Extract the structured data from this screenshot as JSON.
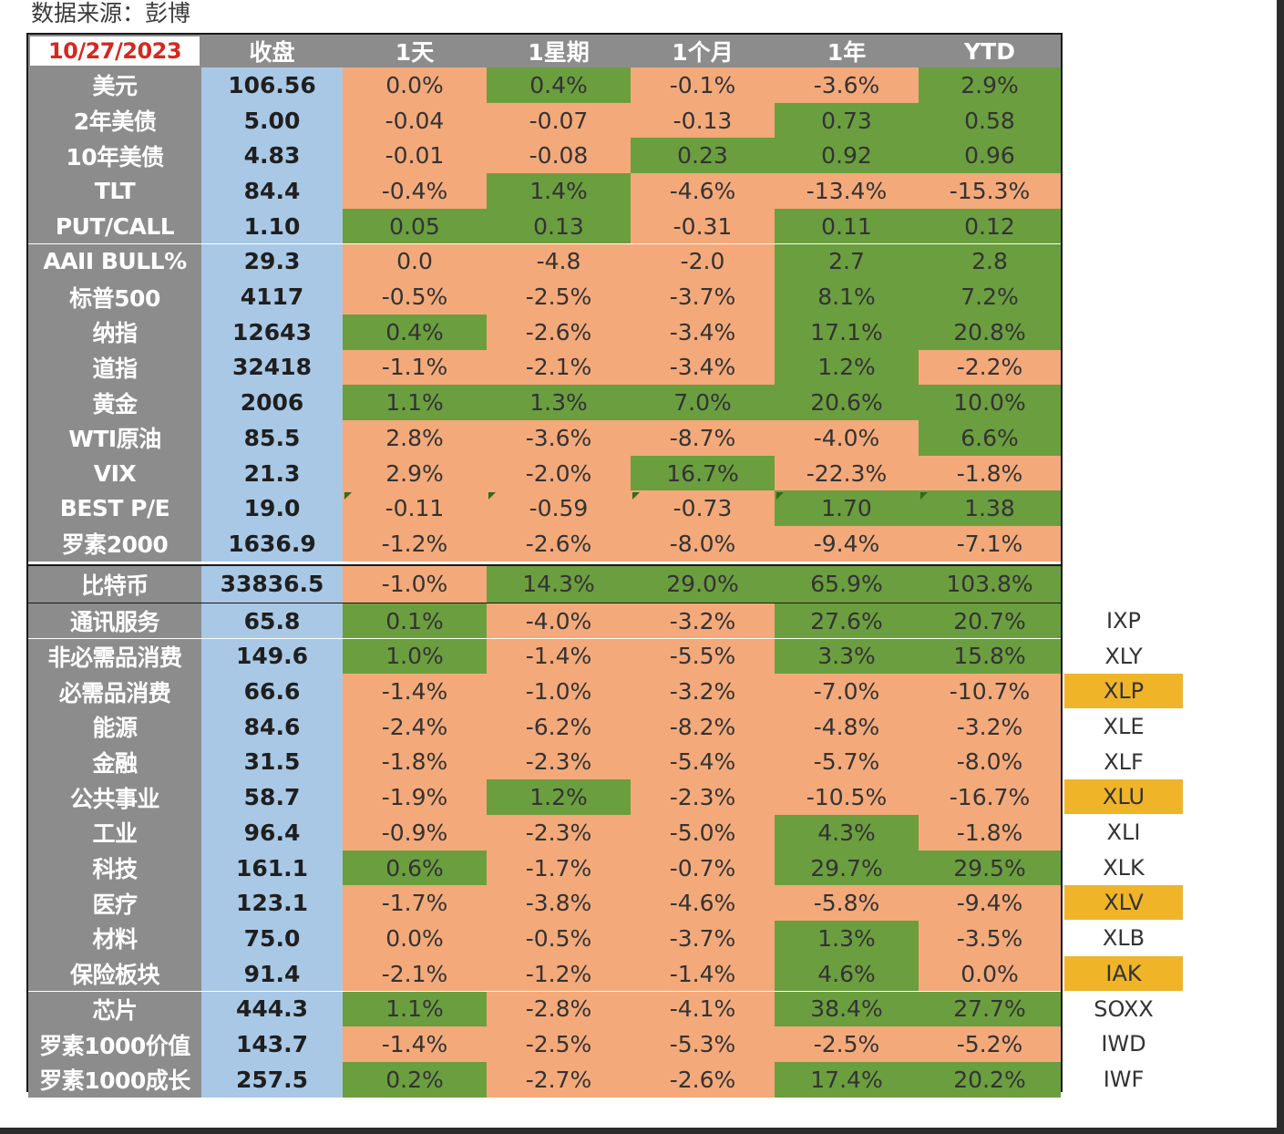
{
  "source": "数据来源：彭博",
  "header": {
    "date": "10/27/2023",
    "columns": [
      "收盘",
      "1天",
      "1星期",
      "1个月",
      "1年",
      "YTD"
    ]
  },
  "colors": {
    "positive": "#6b9e3f",
    "negative": "#f4a97a",
    "label_bg": "#8c8c8c",
    "close_bg": "#a9c8e6",
    "etf_highlight": "#f0b429"
  },
  "rows": [
    {
      "name": "美元",
      "close": "106.56",
      "d1": "0.0%",
      "w1": "0.4%",
      "m1": "-0.1%",
      "y1": "-3.6%",
      "ytd": "2.9%",
      "colors": [
        "neg",
        "pos",
        "neg",
        "neg",
        "pos"
      ]
    },
    {
      "name": "2年美债",
      "close": "5.00",
      "d1": "-0.04",
      "w1": "-0.07",
      "m1": "-0.13",
      "y1": "0.73",
      "ytd": "0.58",
      "colors": [
        "neg",
        "neg",
        "neg",
        "pos",
        "pos"
      ]
    },
    {
      "name": "10年美债",
      "close": "4.83",
      "d1": "-0.01",
      "w1": "-0.08",
      "m1": "0.23",
      "y1": "0.92",
      "ytd": "0.96",
      "colors": [
        "neg",
        "neg",
        "pos",
        "pos",
        "pos"
      ]
    },
    {
      "name": "TLT",
      "close": "84.4",
      "d1": "-0.4%",
      "w1": "1.4%",
      "m1": "-4.6%",
      "y1": "-13.4%",
      "ytd": "-15.3%",
      "colors": [
        "neg",
        "pos",
        "neg",
        "neg",
        "neg"
      ]
    },
    {
      "name": "PUT/CALL",
      "close": "1.10",
      "d1": "0.05",
      "w1": "0.13",
      "m1": "-0.31",
      "y1": "0.11",
      "ytd": "0.12",
      "colors": [
        "pos",
        "pos",
        "neg",
        "pos",
        "pos"
      ]
    },
    {
      "name": "AAII BULL%",
      "close": "29.3",
      "d1": "0.0",
      "w1": "-4.8",
      "m1": "-2.0",
      "y1": "2.7",
      "ytd": "2.8",
      "colors": [
        "neg",
        "neg",
        "neg",
        "pos",
        "pos"
      ]
    },
    {
      "name": "标普500",
      "close": "4117",
      "d1": "-0.5%",
      "w1": "-2.5%",
      "m1": "-3.7%",
      "y1": "8.1%",
      "ytd": "7.2%",
      "colors": [
        "neg",
        "neg",
        "neg",
        "pos",
        "pos"
      ]
    },
    {
      "name": "纳指",
      "close": "12643",
      "d1": "0.4%",
      "w1": "-2.6%",
      "m1": "-3.4%",
      "y1": "17.1%",
      "ytd": "20.8%",
      "colors": [
        "pos",
        "neg",
        "neg",
        "pos",
        "pos"
      ]
    },
    {
      "name": "道指",
      "close": "32418",
      "d1": "-1.1%",
      "w1": "-2.1%",
      "m1": "-3.4%",
      "y1": "1.2%",
      "ytd": "-2.2%",
      "colors": [
        "neg",
        "neg",
        "neg",
        "pos",
        "neg"
      ]
    },
    {
      "name": "黄金",
      "close": "2006",
      "d1": "1.1%",
      "w1": "1.3%",
      "m1": "7.0%",
      "y1": "20.6%",
      "ytd": "10.0%",
      "colors": [
        "pos",
        "pos",
        "pos",
        "pos",
        "pos"
      ]
    },
    {
      "name": "WTI原油",
      "close": "85.5",
      "d1": "2.8%",
      "w1": "-3.6%",
      "m1": "-8.7%",
      "y1": "-4.0%",
      "ytd": "6.6%",
      "colors": [
        "neg",
        "neg",
        "neg",
        "neg",
        "pos"
      ]
    },
    {
      "name": "VIX",
      "close": "21.3",
      "d1": "2.9%",
      "w1": "-2.0%",
      "m1": "16.7%",
      "y1": "-22.3%",
      "ytd": "-1.8%",
      "colors": [
        "neg",
        "neg",
        "pos",
        "neg",
        "neg"
      ]
    },
    {
      "name": "BEST P/E",
      "close": "19.0",
      "d1": "-0.11",
      "w1": "-0.59",
      "m1": "-0.73",
      "y1": "1.70",
      "ytd": "1.38",
      "colors": [
        "neg",
        "neg",
        "neg",
        "pos",
        "pos"
      ],
      "markers": true
    },
    {
      "name": "罗素2000",
      "close": "1636.9",
      "d1": "-1.2%",
      "w1": "-2.6%",
      "m1": "-8.0%",
      "y1": "-9.4%",
      "ytd": "-7.1%",
      "colors": [
        "neg",
        "neg",
        "neg",
        "neg",
        "neg"
      ]
    }
  ],
  "btc": {
    "name": "比特币",
    "close": "33836.5",
    "d1": "-1.0%",
    "w1": "14.3%",
    "m1": "29.0%",
    "y1": "65.9%",
    "ytd": "103.8%",
    "colors": [
      "neg",
      "pos",
      "pos",
      "pos",
      "pos"
    ]
  },
  "sectors": [
    {
      "name": "通讯服务",
      "close": "65.8",
      "d1": "0.1%",
      "w1": "-4.0%",
      "m1": "-3.2%",
      "y1": "27.6%",
      "ytd": "20.7%",
      "colors": [
        "pos",
        "neg",
        "neg",
        "pos",
        "pos"
      ],
      "etf": "IXP",
      "hl": false
    },
    {
      "name": "非必需品消费",
      "close": "149.6",
      "d1": "1.0%",
      "w1": "-1.4%",
      "m1": "-5.5%",
      "y1": "3.3%",
      "ytd": "15.8%",
      "colors": [
        "pos",
        "neg",
        "neg",
        "pos",
        "pos"
      ],
      "etf": "XLY",
      "hl": false
    },
    {
      "name": "必需品消费",
      "close": "66.6",
      "d1": "-1.4%",
      "w1": "-1.0%",
      "m1": "-3.2%",
      "y1": "-7.0%",
      "ytd": "-10.7%",
      "colors": [
        "neg",
        "neg",
        "neg",
        "neg",
        "neg"
      ],
      "etf": "XLP",
      "hl": true
    },
    {
      "name": "能源",
      "close": "84.6",
      "d1": "-2.4%",
      "w1": "-6.2%",
      "m1": "-8.2%",
      "y1": "-4.8%",
      "ytd": "-3.2%",
      "colors": [
        "neg",
        "neg",
        "neg",
        "neg",
        "neg"
      ],
      "etf": "XLE",
      "hl": false
    },
    {
      "name": "金融",
      "close": "31.5",
      "d1": "-1.8%",
      "w1": "-2.3%",
      "m1": "-5.4%",
      "y1": "-5.7%",
      "ytd": "-8.0%",
      "colors": [
        "neg",
        "neg",
        "neg",
        "neg",
        "neg"
      ],
      "etf": "XLF",
      "hl": false
    },
    {
      "name": "公共事业",
      "close": "58.7",
      "d1": "-1.9%",
      "w1": "1.2%",
      "m1": "-2.3%",
      "y1": "-10.5%",
      "ytd": "-16.7%",
      "colors": [
        "neg",
        "pos",
        "neg",
        "neg",
        "neg"
      ],
      "etf": "XLU",
      "hl": true
    },
    {
      "name": "工业",
      "close": "96.4",
      "d1": "-0.9%",
      "w1": "-2.3%",
      "m1": "-5.0%",
      "y1": "4.3%",
      "ytd": "-1.8%",
      "colors": [
        "neg",
        "neg",
        "neg",
        "pos",
        "neg"
      ],
      "etf": "XLI",
      "hl": false
    },
    {
      "name": "科技",
      "close": "161.1",
      "d1": "0.6%",
      "w1": "-1.7%",
      "m1": "-0.7%",
      "y1": "29.7%",
      "ytd": "29.5%",
      "colors": [
        "pos",
        "neg",
        "neg",
        "pos",
        "pos"
      ],
      "etf": "XLK",
      "hl": false
    },
    {
      "name": "医疗",
      "close": "123.1",
      "d1": "-1.7%",
      "w1": "-3.8%",
      "m1": "-4.6%",
      "y1": "-5.8%",
      "ytd": "-9.4%",
      "colors": [
        "neg",
        "neg",
        "neg",
        "neg",
        "neg"
      ],
      "etf": "XLV",
      "hl": true
    },
    {
      "name": "材料",
      "close": "75.0",
      "d1": "0.0%",
      "w1": "-0.5%",
      "m1": "-3.7%",
      "y1": "1.3%",
      "ytd": "-3.5%",
      "colors": [
        "neg",
        "neg",
        "neg",
        "pos",
        "neg"
      ],
      "etf": "XLB",
      "hl": false
    },
    {
      "name": "保险板块",
      "close": "91.4",
      "d1": "-2.1%",
      "w1": "-1.2%",
      "m1": "-1.4%",
      "y1": "4.6%",
      "ytd": "0.0%",
      "colors": [
        "neg",
        "neg",
        "neg",
        "pos",
        "neg"
      ],
      "etf": "IAK",
      "hl": true
    },
    {
      "name": "芯片",
      "close": "444.3",
      "d1": "1.1%",
      "w1": "-2.8%",
      "m1": "-4.1%",
      "y1": "38.4%",
      "ytd": "27.7%",
      "colors": [
        "pos",
        "neg",
        "neg",
        "pos",
        "pos"
      ],
      "etf": "SOXX",
      "hl": false
    },
    {
      "name": "罗素1000价值",
      "close": "143.7",
      "d1": "-1.4%",
      "w1": "-2.5%",
      "m1": "-5.3%",
      "y1": "-2.5%",
      "ytd": "-5.2%",
      "colors": [
        "neg",
        "neg",
        "neg",
        "neg",
        "neg"
      ],
      "etf": "IWD",
      "hl": false
    },
    {
      "name": "罗素1000成长",
      "close": "257.5",
      "d1": "0.2%",
      "w1": "-2.7%",
      "m1": "-2.6%",
      "y1": "17.4%",
      "ytd": "20.2%",
      "colors": [
        "pos",
        "neg",
        "neg",
        "pos",
        "pos"
      ],
      "etf": "IWF",
      "hl": false
    }
  ]
}
